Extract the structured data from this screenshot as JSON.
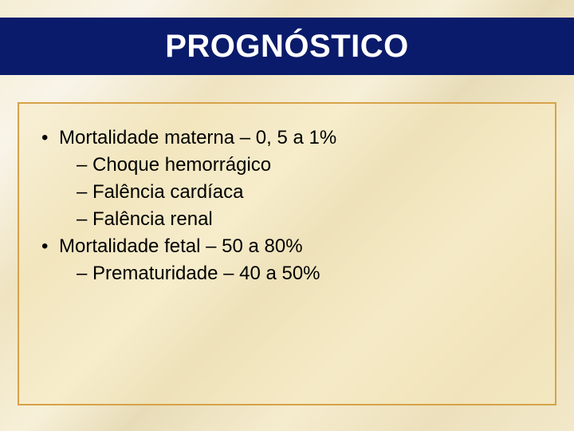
{
  "slide": {
    "title": "PROGNÓSTICO",
    "title_fontsize": 40,
    "title_bg": "#0a1b6b",
    "title_color": "#ffffff",
    "body_fontsize": 24,
    "body_color": "#000000",
    "box_border_color": "#d6a24a",
    "box_bg": "rgba(247,232,188,0.45)",
    "bullets": [
      {
        "level": 1,
        "text": "Mortalidade materna – 0, 5 a 1%"
      },
      {
        "level": 2,
        "text": "Choque hemorrágico"
      },
      {
        "level": 2,
        "text": "Falência cardíaca"
      },
      {
        "level": 2,
        "text": "Falência renal"
      },
      {
        "level": 1,
        "text": "Mortalidade fetal – 50 a 80%"
      },
      {
        "level": 2,
        "text": "Prematuridade – 40 a 50%"
      }
    ]
  }
}
